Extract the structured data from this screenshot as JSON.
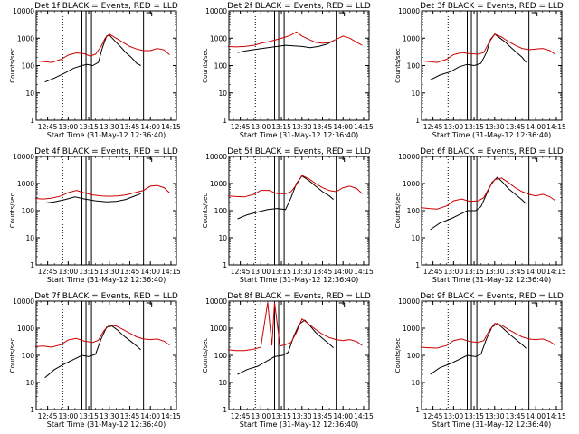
{
  "chart_data": [
    {
      "type": "line",
      "title": "Det 1f BLACK = Events, RED = LLD",
      "xlabel": "Start Time (31-May-12 12:36:40)",
      "ylabel": "Counts/sec",
      "yscale": "log",
      "ylim": [
        1,
        10000
      ],
      "x_ticks": [
        "12:45",
        "13:00",
        "13:15",
        "13:30",
        "13:45",
        "14:00",
        "14:15"
      ],
      "y_ticks": [
        "1",
        "10",
        "100",
        "1000",
        "10000"
      ],
      "series": [
        {
          "name": "BLACK",
          "color": "#000000",
          "t": [
            "12:43",
            "12:50",
            "12:58",
            "13:04",
            "13:10",
            "13:14",
            "13:18",
            "13:22",
            "13:25",
            "13:28",
            "13:30",
            "13:34",
            "13:38",
            "13:42",
            "13:46",
            "13:50",
            "13:53"
          ],
          "values": [
            25,
            35,
            55,
            80,
            100,
            110,
            100,
            130,
            450,
            1200,
            1300,
            800,
            500,
            300,
            200,
            120,
            100
          ]
        },
        {
          "name": "RED",
          "color": "#cc0000",
          "t": [
            "12:36",
            "12:42",
            "12:48",
            "12:55",
            "13:00",
            "13:06",
            "13:12",
            "13:16",
            "13:20",
            "13:24",
            "13:27",
            "13:30",
            "13:35",
            "13:40",
            "13:45",
            "13:50",
            "13:55",
            "14:00",
            "14:05",
            "14:10",
            "14:14"
          ],
          "values": [
            150,
            140,
            130,
            170,
            240,
            290,
            270,
            220,
            260,
            500,
            1000,
            1400,
            1000,
            700,
            500,
            400,
            350,
            350,
            420,
            370,
            250
          ]
        }
      ]
    },
    {
      "type": "line",
      "title": "Det 2f BLACK = Events, RED = LLD",
      "xlabel": "Start Time (31-May-12 12:36:40)",
      "ylabel": "Counts/sec",
      "yscale": "log",
      "ylim": [
        1,
        10000
      ],
      "x_ticks": [
        "12:45",
        "13:00",
        "13:15",
        "13:30",
        "13:45",
        "14:00",
        "14:15"
      ],
      "y_ticks": [
        "1",
        "10",
        "100",
        "1000",
        "10000"
      ],
      "series": [
        {
          "name": "BLACK",
          "color": "#000000",
          "t": [
            "12:43",
            "12:50",
            "12:58",
            "13:05",
            "13:12",
            "13:18",
            "13:24",
            "13:30",
            "13:36",
            "13:42",
            "13:48",
            "13:53"
          ],
          "values": [
            300,
            350,
            400,
            450,
            500,
            550,
            520,
            500,
            450,
            500,
            600,
            800
          ]
        },
        {
          "name": "RED",
          "color": "#cc0000",
          "t": [
            "12:36",
            "12:42",
            "12:48",
            "12:55",
            "13:00",
            "13:06",
            "13:12",
            "13:18",
            "13:22",
            "13:26",
            "13:30",
            "13:35",
            "13:40",
            "13:45",
            "13:50",
            "13:55",
            "14:00",
            "14:05",
            "14:10",
            "14:14"
          ],
          "values": [
            500,
            480,
            500,
            550,
            650,
            750,
            900,
            1100,
            1300,
            1700,
            1200,
            900,
            700,
            650,
            700,
            900,
            1200,
            1000,
            700,
            550
          ]
        }
      ]
    },
    {
      "type": "line",
      "title": "Det 3f BLACK = Events, RED = LLD",
      "xlabel": "Start Time (31-May-12 12:36:40)",
      "ylabel": "Counts/sec",
      "yscale": "log",
      "ylim": [
        1,
        10000
      ],
      "x_ticks": [
        "12:45",
        "13:00",
        "13:15",
        "13:30",
        "13:45",
        "14:00",
        "14:15"
      ],
      "y_ticks": [
        "1",
        "10",
        "100",
        "1000",
        "10000"
      ],
      "series": [
        {
          "name": "BLACK",
          "color": "#000000",
          "t": [
            "12:43",
            "12:50",
            "12:58",
            "13:04",
            "13:10",
            "13:15",
            "13:20",
            "13:24",
            "13:27",
            "13:30",
            "13:34",
            "13:38",
            "13:42",
            "13:46",
            "13:50",
            "13:53"
          ],
          "values": [
            30,
            45,
            60,
            90,
            110,
            100,
            120,
            300,
            900,
            1400,
            1000,
            700,
            450,
            300,
            200,
            130
          ]
        },
        {
          "name": "RED",
          "color": "#cc0000",
          "t": [
            "12:36",
            "12:42",
            "12:48",
            "12:55",
            "13:00",
            "13:06",
            "13:12",
            "13:18",
            "13:22",
            "13:26",
            "13:30",
            "13:35",
            "13:40",
            "13:45",
            "13:50",
            "13:55",
            "14:00",
            "14:05",
            "14:10",
            "14:14"
          ],
          "values": [
            150,
            140,
            130,
            170,
            250,
            300,
            270,
            260,
            300,
            700,
            1400,
            1100,
            750,
            550,
            420,
            380,
            400,
            420,
            360,
            260
          ]
        }
      ]
    },
    {
      "type": "line",
      "title": "Det 4f BLACK = Events, RED = LLD",
      "xlabel": "Start Time (31-May-12 12:36:40)",
      "ylabel": "Counts/sec",
      "yscale": "log",
      "ylim": [
        1,
        10000
      ],
      "x_ticks": [
        "12:45",
        "13:00",
        "13:15",
        "13:30",
        "13:45",
        "14:00",
        "14:15"
      ],
      "y_ticks": [
        "1",
        "10",
        "100",
        "1000",
        "10000"
      ],
      "series": [
        {
          "name": "BLACK",
          "color": "#000000",
          "t": [
            "12:43",
            "12:50",
            "12:58",
            "13:05",
            "13:12",
            "13:20",
            "13:28",
            "13:35",
            "13:42",
            "13:48",
            "13:53"
          ],
          "values": [
            190,
            210,
            260,
            320,
            270,
            230,
            210,
            220,
            260,
            340,
            420
          ]
        },
        {
          "name": "RED",
          "color": "#cc0000",
          "t": [
            "12:36",
            "12:42",
            "12:48",
            "12:55",
            "13:00",
            "13:06",
            "13:12",
            "13:18",
            "13:24",
            "13:30",
            "13:36",
            "13:42",
            "13:48",
            "13:55",
            "14:00",
            "14:05",
            "14:10",
            "14:14"
          ],
          "values": [
            280,
            270,
            290,
            350,
            460,
            560,
            450,
            380,
            350,
            340,
            350,
            380,
            450,
            560,
            800,
            850,
            700,
            450
          ]
        }
      ]
    },
    {
      "type": "line",
      "title": "Det 5f BLACK = Events, RED = LLD",
      "xlabel": "Start Time (31-May-12 12:36:40)",
      "ylabel": "Counts/sec",
      "yscale": "log",
      "ylim": [
        1,
        10000
      ],
      "x_ticks": [
        "12:45",
        "13:00",
        "13:15",
        "13:30",
        "13:45",
        "14:00",
        "14:15"
      ],
      "y_ticks": [
        "1",
        "10",
        "100",
        "1000",
        "10000"
      ],
      "series": [
        {
          "name": "BLACK",
          "color": "#000000",
          "t": [
            "12:43",
            "12:50",
            "12:58",
            "13:05",
            "13:12",
            "13:18",
            "13:22",
            "13:26",
            "13:30",
            "13:35",
            "13:40",
            "13:45",
            "13:50",
            "13:53"
          ],
          "values": [
            50,
            70,
            90,
            110,
            120,
            110,
            300,
            1000,
            1900,
            1300,
            800,
            500,
            350,
            260
          ]
        },
        {
          "name": "RED",
          "color": "#cc0000",
          "t": [
            "12:36",
            "12:42",
            "12:48",
            "12:55",
            "13:00",
            "13:06",
            "13:12",
            "13:18",
            "13:22",
            "13:26",
            "13:30",
            "13:35",
            "13:40",
            "13:45",
            "13:50",
            "13:55",
            "14:00",
            "14:05",
            "14:10",
            "14:14"
          ],
          "values": [
            350,
            330,
            320,
            400,
            560,
            560,
            420,
            420,
            500,
            900,
            2000,
            1500,
            1000,
            700,
            550,
            500,
            700,
            800,
            650,
            420
          ]
        }
      ]
    },
    {
      "type": "line",
      "title": "Det 6f BLACK = Events, RED = LLD",
      "xlabel": "Start Time (31-May-12 12:36:40)",
      "ylabel": "Counts/sec",
      "yscale": "log",
      "ylim": [
        1,
        10000
      ],
      "x_ticks": [
        "12:45",
        "13:00",
        "13:15",
        "13:30",
        "13:45",
        "14:00",
        "14:15"
      ],
      "y_ticks": [
        "1",
        "10",
        "100",
        "1000",
        "10000"
      ],
      "series": [
        {
          "name": "BLACK",
          "color": "#000000",
          "t": [
            "12:43",
            "12:50",
            "12:58",
            "13:04",
            "13:10",
            "13:16",
            "13:20",
            "13:24",
            "13:28",
            "13:32",
            "13:36",
            "13:40",
            "13:45",
            "13:50",
            "13:53"
          ],
          "values": [
            20,
            35,
            50,
            70,
            100,
            100,
            140,
            400,
            1100,
            1700,
            1100,
            650,
            400,
            250,
            180
          ]
        },
        {
          "name": "RED",
          "color": "#cc0000",
          "t": [
            "12:36",
            "12:42",
            "12:48",
            "12:55",
            "13:00",
            "13:06",
            "13:12",
            "13:18",
            "13:22",
            "13:26",
            "13:30",
            "13:35",
            "13:40",
            "13:45",
            "13:50",
            "13:55",
            "14:00",
            "14:05",
            "14:10",
            "14:14"
          ],
          "values": [
            130,
            120,
            115,
            150,
            230,
            270,
            220,
            230,
            300,
            700,
            1400,
            1600,
            1100,
            700,
            500,
            400,
            350,
            400,
            330,
            240
          ]
        }
      ]
    },
    {
      "type": "line",
      "title": "Det 7f BLACK = Events, RED = LLD",
      "xlabel": "Start Time (31-May-12 12:36:40)",
      "ylabel": "Counts/sec",
      "yscale": "log",
      "ylim": [
        1,
        10000
      ],
      "x_ticks": [
        "12:45",
        "13:00",
        "13:15",
        "13:30",
        "13:45",
        "14:00",
        "14:15"
      ],
      "y_ticks": [
        "1",
        "10",
        "100",
        "1000",
        "10000"
      ],
      "series": [
        {
          "name": "BLACK",
          "color": "#000000",
          "t": [
            "12:43",
            "12:50",
            "12:58",
            "13:04",
            "13:10",
            "13:15",
            "13:20",
            "13:24",
            "13:28",
            "13:32",
            "13:36",
            "13:40",
            "13:45",
            "13:50",
            "13:53"
          ],
          "values": [
            15,
            30,
            50,
            70,
            100,
            90,
            110,
            400,
            1100,
            1200,
            850,
            550,
            350,
            220,
            160
          ]
        },
        {
          "name": "RED",
          "color": "#cc0000",
          "t": [
            "12:36",
            "12:42",
            "12:48",
            "12:55",
            "13:00",
            "13:06",
            "13:12",
            "13:18",
            "13:22",
            "13:26",
            "13:30",
            "13:35",
            "13:40",
            "13:45",
            "13:50",
            "13:55",
            "14:00",
            "14:05",
            "14:10",
            "14:14"
          ],
          "values": [
            210,
            220,
            200,
            250,
            370,
            420,
            330,
            300,
            360,
            800,
            1300,
            1200,
            900,
            650,
            480,
            400,
            380,
            400,
            330,
            240
          ]
        }
      ]
    },
    {
      "type": "line",
      "title": "Det 8f BLACK = Events, RED = LLD",
      "xlabel": "Start Time (31-May-12 12:36:40)",
      "ylabel": "Counts/sec",
      "yscale": "log",
      "ylim": [
        1,
        10000
      ],
      "x_ticks": [
        "12:45",
        "13:00",
        "13:15",
        "13:30",
        "13:45",
        "14:00",
        "14:15"
      ],
      "y_ticks": [
        "1",
        "10",
        "100",
        "1000",
        "10000"
      ],
      "series": [
        {
          "name": "BLACK",
          "color": "#000000",
          "t": [
            "12:43",
            "12:50",
            "12:58",
            "13:04",
            "13:10",
            "13:16",
            "13:20",
            "13:24",
            "13:28",
            "13:32",
            "13:36",
            "13:40",
            "13:45",
            "13:50",
            "13:53"
          ],
          "values": [
            20,
            30,
            40,
            60,
            90,
            100,
            130,
            500,
            1400,
            2000,
            1200,
            700,
            420,
            260,
            190
          ]
        },
        {
          "name": "RED",
          "color": "#cc0000",
          "t": [
            "12:36",
            "12:42",
            "12:48",
            "12:55",
            "13:00",
            "13:05",
            "13:08",
            "13:10",
            "13:14",
            "13:18",
            "13:22",
            "13:26",
            "13:30",
            "13:35",
            "13:40",
            "13:45",
            "13:50",
            "13:55",
            "14:00",
            "14:05",
            "14:10",
            "14:14"
          ],
          "values": [
            160,
            150,
            150,
            170,
            200,
            9000,
            230,
            9000,
            220,
            250,
            300,
            700,
            2200,
            1400,
            900,
            600,
            450,
            380,
            350,
            380,
            320,
            230
          ]
        }
      ]
    },
    {
      "type": "line",
      "title": "Det 9f BLACK = Events, RED = LLD",
      "xlabel": "Start Time (31-May-12 12:36:40)",
      "ylabel": "Counts/sec",
      "yscale": "log",
      "ylim": [
        1,
        10000
      ],
      "x_ticks": [
        "12:45",
        "13:00",
        "13:15",
        "13:30",
        "13:45",
        "14:00",
        "14:15"
      ],
      "y_ticks": [
        "1",
        "10",
        "100",
        "1000",
        "10000"
      ],
      "series": [
        {
          "name": "BLACK",
          "color": "#000000",
          "t": [
            "12:43",
            "12:50",
            "12:58",
            "13:04",
            "13:10",
            "13:16",
            "13:20",
            "13:24",
            "13:28",
            "13:32",
            "13:36",
            "13:40",
            "13:45",
            "13:50",
            "13:53"
          ],
          "values": [
            20,
            35,
            50,
            70,
            100,
            90,
            110,
            400,
            1100,
            1500,
            1000,
            650,
            400,
            250,
            180
          ]
        },
        {
          "name": "RED",
          "color": "#cc0000",
          "t": [
            "12:36",
            "12:42",
            "12:48",
            "12:55",
            "13:00",
            "13:06",
            "13:12",
            "13:18",
            "13:22",
            "13:26",
            "13:30",
            "13:35",
            "13:40",
            "13:45",
            "13:50",
            "13:55",
            "14:00",
            "14:05",
            "14:10",
            "14:14"
          ],
          "values": [
            200,
            190,
            185,
            230,
            350,
            400,
            320,
            300,
            350,
            800,
            1500,
            1300,
            900,
            650,
            480,
            400,
            380,
            400,
            330,
            240
          ]
        }
      ]
    }
  ]
}
